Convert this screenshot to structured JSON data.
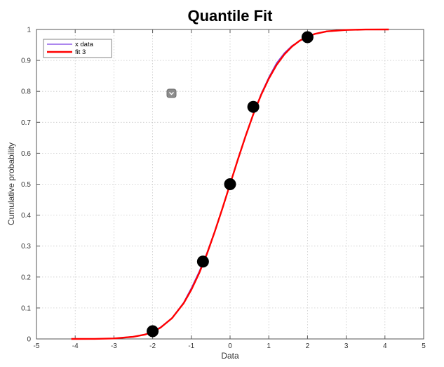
{
  "chart_data": {
    "type": "line",
    "title": "Quantile Fit",
    "xlabel": "Data",
    "ylabel": "Cumulative probability",
    "xlim": [
      -5,
      5
    ],
    "ylim": [
      0,
      1
    ],
    "xticks": [
      "-5",
      "-4",
      "-3",
      "-2",
      "-1",
      "0",
      "1",
      "2",
      "3",
      "4",
      "5"
    ],
    "yticks": [
      "0",
      "0.1",
      "0.2",
      "0.3",
      "0.4",
      "0.5",
      "0.6",
      "0.7",
      "0.8",
      "0.9",
      "1"
    ],
    "grid": true,
    "legend_position": "top-left",
    "series": [
      {
        "name": "x data",
        "color": "#7b3fe4",
        "x": [
          -4.1,
          -3.5,
          -3.0,
          -2.5,
          -2.2,
          -2.0,
          -1.8,
          -1.5,
          -1.2,
          -1.0,
          -0.8,
          -0.6,
          -0.4,
          -0.2,
          0.0,
          0.2,
          0.4,
          0.6,
          0.8,
          1.0,
          1.2,
          1.4,
          1.6,
          1.8,
          2.0,
          2.2,
          2.5,
          3.0,
          3.5,
          4.1
        ],
        "y": [
          0.0,
          0.0002,
          0.002,
          0.008,
          0.015,
          0.024,
          0.038,
          0.068,
          0.118,
          0.165,
          0.218,
          0.278,
          0.348,
          0.422,
          0.5,
          0.582,
          0.658,
          0.728,
          0.792,
          0.846,
          0.892,
          0.924,
          0.948,
          0.963,
          0.975,
          0.985,
          0.993,
          0.998,
          0.9995,
          1.0
        ]
      },
      {
        "name": "fit 3",
        "color": "#ff0000",
        "x": [
          -4.1,
          -3.5,
          -3.0,
          -2.5,
          -2.2,
          -2.0,
          -1.8,
          -1.5,
          -1.2,
          -1.0,
          -0.8,
          -0.6,
          -0.4,
          -0.2,
          0.0,
          0.2,
          0.4,
          0.6,
          0.8,
          1.0,
          1.2,
          1.4,
          1.6,
          1.8,
          2.0,
          2.2,
          2.5,
          3.0,
          3.5,
          4.1
        ],
        "y": [
          0.0,
          0.0002,
          0.0015,
          0.007,
          0.014,
          0.023,
          0.036,
          0.067,
          0.115,
          0.159,
          0.212,
          0.274,
          0.345,
          0.421,
          0.5,
          0.579,
          0.655,
          0.726,
          0.788,
          0.841,
          0.885,
          0.919,
          0.945,
          0.964,
          0.977,
          0.986,
          0.994,
          0.9985,
          0.9998,
          1.0
        ]
      }
    ],
    "quantile_points": {
      "color": "#000000",
      "x": [
        -2.0,
        -0.7,
        0.0,
        0.6,
        2.0
      ],
      "y": [
        0.025,
        0.25,
        0.5,
        0.75,
        0.975
      ]
    }
  }
}
